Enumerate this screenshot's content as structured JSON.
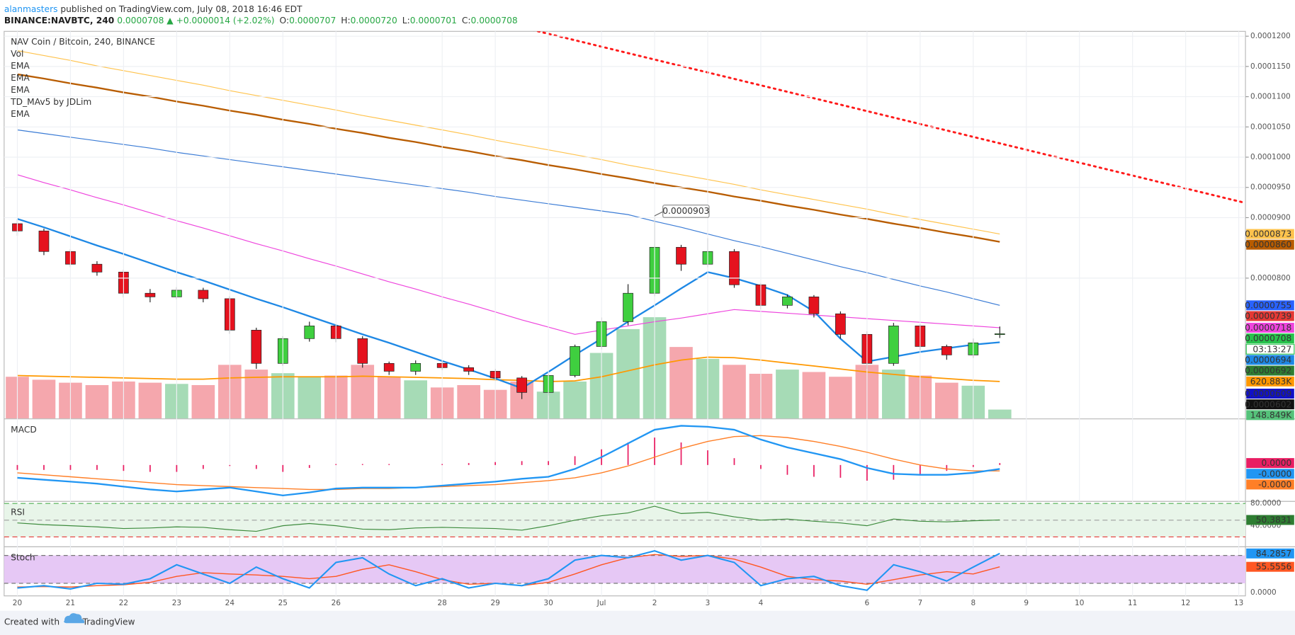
{
  "header": {
    "user": "alanmasters",
    "published": " published on TradingView.com, July 08, 2018 16:46 EDT",
    "symbol": "BINANCE:NAVBTC, 240",
    "last": "0.0000708",
    "change": "▲ +0.0000014 (+2.02%)",
    "ohlc": [
      {
        "label": "O:",
        "value": "0.0000707"
      },
      {
        "label": "H:",
        "value": "0.0000720"
      },
      {
        "label": "L:",
        "value": "0.0000701"
      },
      {
        "label": "C:",
        "value": "0.0000708"
      }
    ]
  },
  "footer": {
    "text": "Created with",
    "brand": "TradingView"
  },
  "chart_data": {
    "type": "candlestick",
    "legend": [
      "NAV Coin / Bitcoin, 240, BINANCE",
      "Vol",
      "EMA",
      "EMA",
      "EMA",
      "TD_MAv5 by JDLim",
      "EMA"
    ],
    "categories": [
      "20",
      null,
      "21",
      null,
      "22",
      null,
      "23",
      null,
      "24",
      null,
      "25",
      null,
      "26",
      null,
      null,
      null,
      "28",
      null,
      "29",
      null,
      "30",
      null,
      "Jul",
      null,
      "2",
      null,
      "3",
      null,
      "4",
      null,
      null,
      null,
      "6",
      null,
      "7",
      null,
      "8",
      null,
      "9",
      null,
      "10",
      null,
      "11",
      null,
      "12",
      null,
      "13",
      null
    ],
    "up_color": "#3fcf3f",
    "down_color": "#e5121e",
    "open": [
      8.9e-05,
      8.78e-05,
      8.44e-05,
      8.23e-05,
      8.1e-05,
      7.75e-05,
      7.69e-05,
      7.8e-05,
      7.66e-05,
      7.14e-05,
      6.59e-05,
      7e-05,
      7.21e-05,
      7e-05,
      6.59e-05,
      6.46e-05,
      6.59e-05,
      6.52e-05,
      6.46e-05,
      6.35e-05,
      6.11e-05,
      6.39e-05,
      6.87e-05,
      7.28e-05,
      7.75e-05,
      8.51e-05,
      8.23e-05,
      8.44e-05,
      7.89e-05,
      7.55e-05,
      7.69e-05,
      7.41e-05,
      7.07e-05,
      6.59e-05,
      7.21e-05,
      6.87e-05,
      6.73e-05,
      7.07e-05,
      null,
      null,
      null,
      null,
      null,
      null,
      null,
      null,
      null,
      null
    ],
    "high": [
      8.98e-05,
      8.82e-05,
      8.48e-05,
      8.28e-05,
      8.14e-05,
      7.82e-05,
      7.85e-05,
      7.84e-05,
      7.7e-05,
      7.18e-05,
      7.04e-05,
      7.28e-05,
      7.24e-05,
      7.04e-05,
      6.62e-05,
      6.64e-05,
      6.63e-05,
      6.56e-05,
      6.5e-05,
      6.38e-05,
      6.42e-05,
      6.9e-05,
      7.35e-05,
      7.9e-05,
      9.03e-05,
      8.55e-05,
      8.66e-05,
      8.48e-05,
      7.92e-05,
      7.73e-05,
      7.72e-05,
      7.45e-05,
      7.12e-05,
      7.26e-05,
      7.24e-05,
      6.9e-05,
      7e-05,
      7.2e-05,
      null,
      null,
      null,
      null,
      null,
      null,
      null,
      null,
      null,
      null
    ],
    "low": [
      8.7e-05,
      8.38e-05,
      8.18e-05,
      8.04e-05,
      7.68e-05,
      7.6e-05,
      7.65e-05,
      7.6e-05,
      7.08e-05,
      6.5e-05,
      6.55e-05,
      6.95e-05,
      6.94e-05,
      6.52e-05,
      6.4e-05,
      6.4e-05,
      6.48e-05,
      6.4e-05,
      6.3e-05,
      6e-05,
      6.06e-05,
      6.36e-05,
      6.82e-05,
      7.22e-05,
      7.7e-05,
      8.12e-05,
      8.18e-05,
      7.84e-05,
      7.48e-05,
      7.5e-05,
      7.35e-05,
      7e-05,
      6.5e-05,
      6.55e-05,
      6.8e-05,
      6.65e-05,
      6.68e-05,
      7.01e-05,
      null,
      null,
      null,
      null,
      null,
      null,
      null,
      null,
      null,
      null
    ],
    "close": [
      8.78e-05,
      8.44e-05,
      8.23e-05,
      8.1e-05,
      7.75e-05,
      7.69e-05,
      7.8e-05,
      7.66e-05,
      7.14e-05,
      6.59e-05,
      7e-05,
      7.21e-05,
      7e-05,
      6.59e-05,
      6.46e-05,
      6.59e-05,
      6.52e-05,
      6.46e-05,
      6.35e-05,
      6.11e-05,
      6.39e-05,
      6.87e-05,
      7.28e-05,
      7.75e-05,
      8.51e-05,
      8.23e-05,
      8.44e-05,
      7.89e-05,
      7.55e-05,
      7.69e-05,
      7.41e-05,
      7.07e-05,
      6.59e-05,
      7.21e-05,
      6.87e-05,
      6.73e-05,
      6.93e-05,
      7.08e-05,
      null,
      null,
      null,
      null,
      null,
      null,
      null,
      null,
      null,
      null
    ],
    "ylim": [
      5.68e-05,
      0.0001208
    ],
    "yticks": [
      {
        "value": 0.00012,
        "label": "0.0001200"
      },
      {
        "value": 0.000115,
        "label": "0.0001150"
      },
      {
        "value": 0.00011,
        "label": "0.0001100"
      },
      {
        "value": 0.000105,
        "label": "0.0001050"
      },
      {
        "value": 0.0001,
        "label": "0.0001000"
      },
      {
        "value": 9.5e-05,
        "label": "0.0000950"
      },
      {
        "value": 9e-05,
        "label": "0.0000900"
      },
      {
        "value": 8e-05,
        "label": "0.0000800"
      }
    ],
    "grid": true,
    "volume": {
      "vlim": [
        0,
        6500000
      ],
      "up_color": "#a6dbb6",
      "down_color": "#f5a7ad",
      "values": [
        700000,
        650000,
        600000,
        560000,
        620000,
        600000,
        580000,
        560000,
        900000,
        820000,
        760000,
        700000,
        720000,
        900000,
        700000,
        640000,
        520000,
        560000,
        480000,
        620000,
        450000,
        620000,
        1100000,
        1500000,
        1700000,
        1200000,
        1000000,
        900000,
        750000,
        820000,
        780000,
        700000,
        900000,
        820000,
        720000,
        600000,
        550000,
        148849,
        null,
        null,
        null,
        null,
        null,
        null,
        null,
        null,
        null,
        null
      ]
    },
    "volume_ma": {
      "color": "#ff9800",
      "values": [
        720000,
        710000,
        700000,
        690000,
        680000,
        670000,
        660000,
        660000,
        680000,
        690000,
        700000,
        700000,
        700000,
        710000,
        700000,
        690000,
        680000,
        670000,
        650000,
        640000,
        620000,
        630000,
        700000,
        800000,
        900000,
        980000,
        1030000,
        1020000,
        980000,
        930000,
        880000,
        830000,
        780000,
        740000,
        700000,
        670000,
        640000,
        620883,
        null,
        null,
        null,
        null,
        null,
        null,
        null,
        null,
        null,
        null
      ]
    },
    "lines": [
      {
        "color": "#ffc34d",
        "width": 1,
        "values": [
          0.0001176,
          0.0001168,
          0.000116,
          0.0001151,
          0.0001143,
          0.0001135,
          0.0001127,
          0.0001119,
          0.000111,
          0.0001102,
          0.0001094,
          0.0001086,
          0.0001078,
          0.0001069,
          0.0001061,
          0.0001053,
          0.0001045,
          0.0001037,
          0.0001028,
          0.000102,
          0.0001012,
          0.0001004,
          9.96e-05,
          9.87e-05,
          9.79e-05,
          9.71e-05,
          9.63e-05,
          9.55e-05,
          9.46e-05,
          9.38e-05,
          9.3e-05,
          9.22e-05,
          9.14e-05,
          9.05e-05,
          8.97e-05,
          8.89e-05,
          8.81e-05,
          8.73e-05,
          null,
          null,
          null,
          null,
          null,
          null,
          null,
          null,
          null,
          null
        ]
      },
      {
        "color": "#b85c00",
        "width": 2,
        "values": [
          0.0001137,
          0.000113,
          0.0001122,
          0.0001115,
          0.0001107,
          0.00011,
          0.0001092,
          0.0001085,
          0.0001077,
          0.000107,
          0.0001062,
          0.0001055,
          0.0001047,
          0.000104,
          0.0001032,
          0.0001025,
          0.0001017,
          0.000101,
          0.0001002,
          9.95e-05,
          9.87e-05,
          9.8e-05,
          9.72e-05,
          9.65e-05,
          9.57e-05,
          9.5e-05,
          9.43e-05,
          9.35e-05,
          9.28e-05,
          9.2e-05,
          9.13e-05,
          9.05e-05,
          8.98e-05,
          8.9e-05,
          8.83e-05,
          8.75e-05,
          8.68e-05,
          8.6e-05,
          null,
          null,
          null,
          null,
          null,
          null,
          null,
          null,
          null,
          null
        ]
      },
      {
        "color": "#3a7bd5",
        "width": 1,
        "values": [
          0.0001045,
          0.0001039,
          0.0001033,
          0.0001027,
          0.0001021,
          0.0001015,
          0.0001008,
          0.0001002,
          9.96e-05,
          9.9e-05,
          9.84e-05,
          9.78e-05,
          9.72e-05,
          9.66e-05,
          9.6e-05,
          9.54e-05,
          9.48e-05,
          9.42e-05,
          9.35e-05,
          9.29e-05,
          9.23e-05,
          9.17e-05,
          9.11e-05,
          9.05e-05,
          8.94e-05,
          8.84e-05,
          8.73e-05,
          8.62e-05,
          8.52e-05,
          8.41e-05,
          8.3e-05,
          8.19e-05,
          8.09e-05,
          7.98e-05,
          7.87e-05,
          7.77e-05,
          7.66e-05,
          7.55e-05,
          null,
          null,
          null,
          null,
          null,
          null,
          null,
          null,
          null,
          null
        ]
      },
      {
        "color": "#ee44dd",
        "width": 1,
        "values": [
          9.71e-05,
          9.58e-05,
          9.46e-05,
          9.33e-05,
          9.21e-05,
          9.08e-05,
          8.95e-05,
          8.83e-05,
          8.7e-05,
          8.57e-05,
          8.45e-05,
          8.32e-05,
          8.2e-05,
          8.07e-05,
          7.94e-05,
          7.82e-05,
          7.69e-05,
          7.57e-05,
          7.44e-05,
          7.31e-05,
          7.19e-05,
          7.07e-05,
          7.14e-05,
          7.21e-05,
          7.28e-05,
          7.34e-05,
          7.41e-05,
          7.48e-05,
          7.45e-05,
          7.42e-05,
          7.39e-05,
          7.36e-05,
          7.33e-05,
          7.3e-05,
          7.27e-05,
          7.24e-05,
          7.21e-05,
          7.18e-05,
          null,
          null,
          null,
          null,
          null,
          null,
          null,
          null,
          null,
          null
        ]
      },
      {
        "color": "#1e88e5",
        "width": 2,
        "values": [
          8.98e-05,
          8.84e-05,
          8.69e-05,
          8.54e-05,
          8.4e-05,
          8.25e-05,
          8.1e-05,
          7.96e-05,
          7.81e-05,
          7.66e-05,
          7.52e-05,
          7.37e-05,
          7.22e-05,
          7.07e-05,
          6.93e-05,
          6.78e-05,
          6.63e-05,
          6.49e-05,
          6.34e-05,
          6.18e-05,
          6.45e-05,
          6.73e-05,
          7e-05,
          7.28e-05,
          7.55e-05,
          7.83e-05,
          8.1e-05,
          8e-05,
          7.87e-05,
          7.72e-05,
          7.45e-05,
          7e-05,
          6.62e-05,
          6.7e-05,
          6.78e-05,
          6.84e-05,
          6.9e-05,
          6.94e-05,
          null,
          null,
          null,
          null,
          null,
          null,
          null,
          null,
          null,
          null
        ]
      }
    ],
    "trendline": {
      "from": "30",
      "to": "13",
      "values": [
        0.0001204,
        9.27e-05
      ],
      "color": "#ff1a1a"
    },
    "callout": {
      "category": "2",
      "value": 9.03e-05,
      "label": "0.0000903"
    },
    "tags": [
      {
        "value": 8.73e-05,
        "label": "0.0000873",
        "color": "#ffc34d"
      },
      {
        "value": 8.6e-05,
        "label": "0.0000860",
        "color": "#b85c00"
      },
      {
        "value": 7.55e-05,
        "label": "0.0000755",
        "color": "#2962ff"
      },
      {
        "value": 7.39e-05,
        "label": "0.0000739",
        "color": "#e53935"
      },
      {
        "value": 7.18e-05,
        "label": "0.0000718",
        "color": "#ee44dd"
      },
      {
        "value": 7.08e-05,
        "label": "0.0000708",
        "color": "#27c24c"
      },
      {
        "value": 6.94e-05,
        "label": "0.0000694",
        "color": "#1e88e5"
      },
      {
        "value": 6.92e-05,
        "label": "0.0000692",
        "color": "#2e7d32"
      },
      {
        "value": 620883,
        "label": "620.883K",
        "color": "#ff9800",
        "axis": "volume"
      },
      {
        "value": 6.09e-05,
        "label": "0.0000609",
        "color": "#1010c8"
      },
      {
        "value": 6.02e-05,
        "label": "0.0000602",
        "color": "#111111"
      },
      {
        "value": 148849,
        "label": "148.849K",
        "color": "#55c27a",
        "axis": "volume"
      }
    ],
    "countdown": {
      "label": "03:13:27",
      "color": "#27c24c"
    },
    "macd": {
      "title": "MACD",
      "ylim": [
        -3.5e-06,
        4.5e-06
      ],
      "macd": {
        "color": "#2196f3",
        "last_value_label": "-0.0000",
        "values": [
          -1.3e-06,
          -1.5e-06,
          -1.7e-06,
          -1.9e-06,
          -2.2e-06,
          -2.5e-06,
          -2.7e-06,
          -2.5e-06,
          -2.3e-06,
          -2.7e-06,
          -3.1e-06,
          -2.8e-06,
          -2.4e-06,
          -2.3e-06,
          -2.3e-06,
          -2.3e-06,
          -2.1e-06,
          -1.9e-06,
          -1.7e-06,
          -1.4e-06,
          -1.2e-06,
          -4e-07,
          8e-07,
          2.2e-06,
          3.6e-06,
          4e-06,
          3.9e-06,
          3.6e-06,
          2.6e-06,
          1.8e-06,
          1.2e-06,
          6e-07,
          -3e-07,
          -9e-07,
          -1e-06,
          -1e-06,
          -8e-07,
          -4e-07,
          null,
          null,
          null,
          null,
          null,
          null,
          null,
          null,
          null,
          null
        ]
      },
      "signal": {
        "color": "#ff7f27",
        "last_value_label": "-0.0000",
        "values": [
          -8e-07,
          -1e-06,
          -1.2e-06,
          -1.4e-06,
          -1.6e-06,
          -1.8e-06,
          -2e-06,
          -2.1e-06,
          -2.2e-06,
          -2.3e-06,
          -2.4e-06,
          -2.5e-06,
          -2.5e-06,
          -2.4e-06,
          -2.4e-06,
          -2.3e-06,
          -2.2e-06,
          -2.1e-06,
          -2e-06,
          -1.8e-06,
          -1.6e-06,
          -1.3e-06,
          -8e-07,
          -1e-07,
          8e-07,
          1.7e-06,
          2.4e-06,
          2.9e-06,
          3e-06,
          2.8e-06,
          2.4e-06,
          1.9e-06,
          1.3e-06,
          6e-07,
          0.0,
          -4e-07,
          -6e-07,
          -6e-07,
          null,
          null,
          null,
          null,
          null,
          null,
          null,
          null,
          null,
          null
        ]
      },
      "histogram": {
        "color": "#e91e63",
        "last_value_label": "0.0000",
        "values": [
          -5e-07,
          -5e-07,
          -5e-07,
          -5e-07,
          -6e-07,
          -7e-07,
          -7e-07,
          -4e-07,
          -1e-07,
          -4e-07,
          -7e-07,
          -3e-07,
          1e-07,
          1e-07,
          1e-07,
          0.0,
          1e-07,
          2e-07,
          3e-07,
          4e-07,
          4e-07,
          9e-07,
          1.6e-06,
          2.3e-06,
          2.8e-06,
          2.3e-06,
          1.5e-06,
          7e-07,
          -4e-07,
          -1e-06,
          -1.2e-06,
          -1.3e-06,
          -1.6e-06,
          -1.5e-06,
          -1e-06,
          -6e-07,
          -2e-07,
          2e-07,
          null,
          null,
          null,
          null,
          null,
          null,
          null,
          null,
          null,
          null
        ]
      }
    },
    "rsi": {
      "title": "RSI",
      "ylim": [
        3,
        83
      ],
      "yticks": [
        {
          "value": 80,
          "label": "80.0000"
        },
        {
          "value": 40,
          "label": "40.0000"
        }
      ],
      "levels": [
        {
          "value": 80,
          "color": "#4caf50"
        },
        {
          "value": 50,
          "color": "#9e9e9e"
        },
        {
          "value": 20,
          "color": "#e53935"
        }
      ],
      "fill": "#e8f5e9",
      "color": "#3d8b3d",
      "tag_color": "#2e7d32",
      "values": [
        45,
        42,
        40,
        38,
        35,
        36,
        38,
        37,
        33,
        30,
        40,
        44,
        40,
        34,
        33,
        36,
        37,
        36,
        35,
        32,
        40,
        50,
        58,
        63,
        75,
        62,
        64,
        56,
        50,
        52,
        48,
        45,
        40,
        52,
        48,
        47,
        49,
        50.3831,
        null,
        null,
        null,
        null,
        null,
        null,
        null,
        null,
        null,
        null
      ]
    },
    "stoch": {
      "title": "Stoch",
      "ylim": [
        -7,
        97.8
      ],
      "yticks": [
        {
          "value": 80,
          "label": "80.0000"
        },
        {
          "value": 0,
          "label": "0.0000"
        }
      ],
      "levels": [
        80,
        20
      ],
      "fill": "#e6c8f5",
      "k": {
        "color": "#2196f3",
        "values": [
          10,
          15,
          8,
          20,
          18,
          30,
          60,
          40,
          20,
          55,
          30,
          10,
          65,
          75,
          40,
          15,
          30,
          10,
          20,
          15,
          30,
          70,
          80,
          75,
          90,
          70,
          80,
          65,
          15,
          30,
          35,
          15,
          5,
          60,
          45,
          25,
          55,
          84.2857,
          null,
          null,
          null,
          null,
          null,
          null,
          null,
          null,
          null,
          null
        ]
      },
      "d": {
        "color": "#ff5722",
        "values": [
          12,
          13,
          12,
          15,
          17,
          22,
          35,
          43,
          40,
          38,
          35,
          30,
          35,
          50,
          60,
          45,
          28,
          18,
          20,
          15,
          22,
          40,
          60,
          75,
          82,
          78,
          80,
          72,
          55,
          35,
          28,
          25,
          18,
          28,
          38,
          45,
          40,
          55.5556,
          null,
          null,
          null,
          null,
          null,
          null,
          null,
          null,
          null,
          null
        ]
      }
    }
  }
}
